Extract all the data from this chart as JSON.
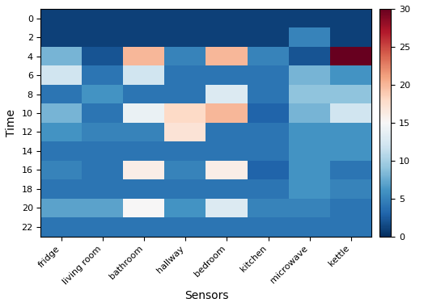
{
  "title": "",
  "xlabel": "Sensors",
  "ylabel": "Time",
  "sensors": [
    "fridge",
    "living room",
    "bathroom",
    "hallway",
    "bedroom",
    "kitchen",
    "microwave",
    "kettle"
  ],
  "time_labels": [
    "0",
    "2",
    "4",
    "6",
    "8",
    "10",
    "12",
    "14",
    "16",
    "18",
    "20",
    "22"
  ],
  "vmin": 0,
  "vmax": 30,
  "colormap": "RdBu_r",
  "data": [
    [
      1,
      1,
      1,
      1,
      1,
      1,
      1,
      1
    ],
    [
      1,
      1,
      1,
      1,
      1,
      1,
      5,
      1
    ],
    [
      8,
      2,
      20,
      5,
      20,
      5,
      2,
      32
    ],
    [
      12,
      4,
      12,
      4,
      4,
      4,
      8,
      6
    ],
    [
      4,
      6,
      4,
      4,
      13,
      4,
      9,
      9
    ],
    [
      8,
      4,
      14,
      18,
      20,
      3,
      8,
      12
    ],
    [
      6,
      5,
      5,
      17,
      4,
      4,
      6,
      6
    ],
    [
      4,
      4,
      4,
      4,
      4,
      4,
      6,
      6
    ],
    [
      5,
      4,
      16,
      5,
      16,
      3,
      6,
      4
    ],
    [
      4,
      4,
      4,
      4,
      4,
      4,
      6,
      5
    ],
    [
      7,
      7,
      15,
      6,
      13,
      5,
      5,
      4
    ],
    [
      4,
      4,
      4,
      4,
      4,
      4,
      4,
      4
    ]
  ]
}
